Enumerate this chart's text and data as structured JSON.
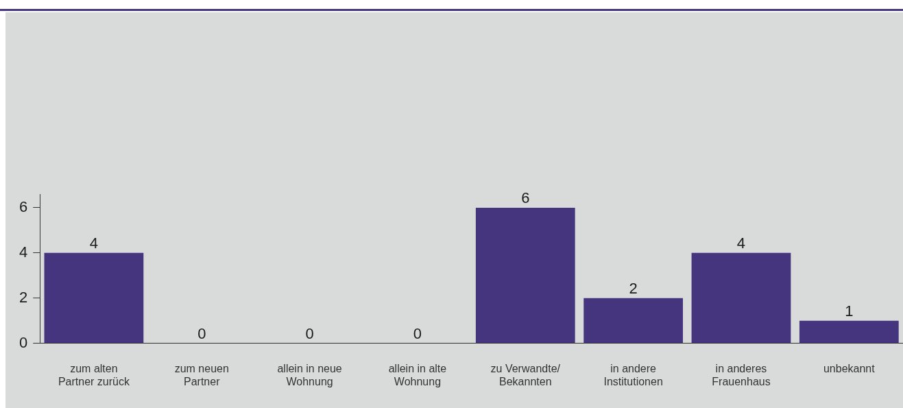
{
  "chart_data": {
    "type": "bar",
    "categories": [
      "zum alten Partner zurück",
      "zum neuen Partner",
      "allein in neue Wohnung",
      "allein in alte Wohnung",
      "zu Verwandte/ Bekannten",
      "in andere Institutionen",
      "in anderes Frauenhaus",
      "unbekannt"
    ],
    "values": [
      4,
      0,
      0,
      0,
      6,
      2,
      4,
      1
    ],
    "color": "#45357f",
    "ylim": [
      0,
      6.6
    ],
    "yticks": [
      0,
      2,
      4,
      6
    ],
    "data_labels": true,
    "grid": false,
    "legend": false
  }
}
